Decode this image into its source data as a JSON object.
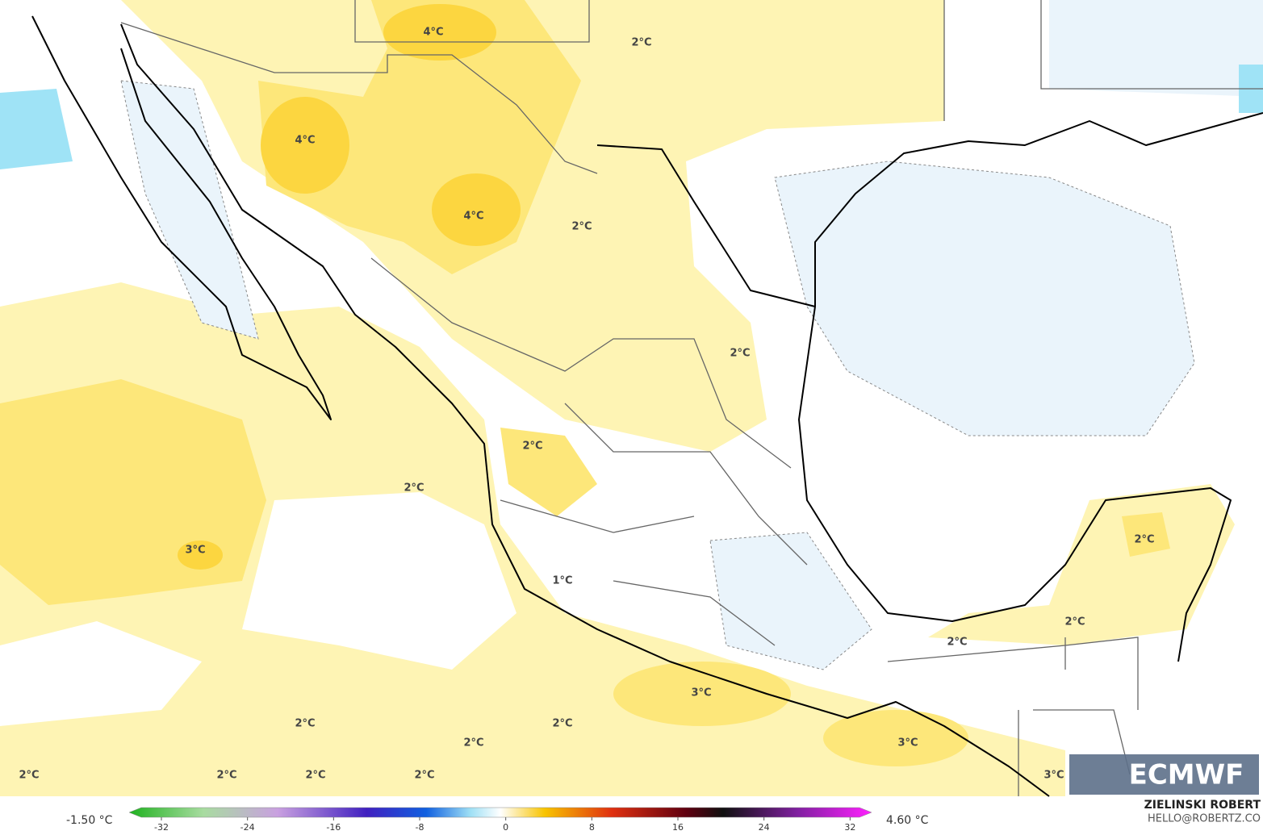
{
  "labels": [
    "4°C",
    "2°C",
    "4°C",
    "4°C",
    "2°C",
    "2°C",
    "2°C",
    "2°C",
    "3°C",
    "2°C",
    "1°C",
    "2°C",
    "2°C",
    "3°C",
    "2°C",
    "2°C",
    "2°C",
    "3°C",
    "2°C",
    "2°C",
    "2°C",
    "2°C",
    "3°C"
  ],
  "colorbar": {
    "min_label": "-1.50 °C",
    "max_label": "4.60 °C",
    "lim": [
      -35,
      34
    ],
    "ticks": [
      -32,
      -24,
      -16,
      -8,
      0,
      8,
      16,
      24,
      32
    ]
  },
  "credit": {
    "author": "ZIELINSKI ROBERT",
    "contact": "HELLO@ROBERTZ.CO"
  },
  "logo": "ECMWF"
}
